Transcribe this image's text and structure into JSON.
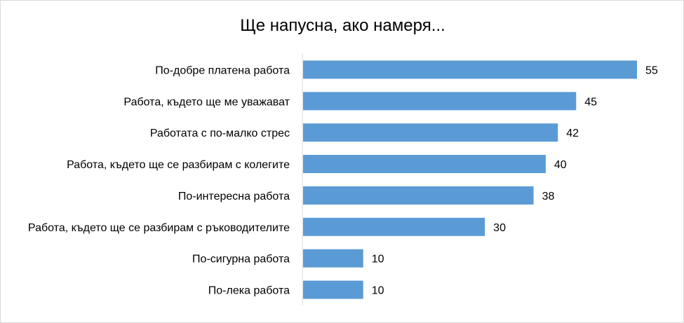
{
  "chart_data": {
    "type": "bar",
    "orientation": "horizontal",
    "title": "Ще напусна, ако намеря...",
    "categories": [
      "По-добре платена работа",
      "Работа, където ще ме уважават",
      "Работата с по-малко стрес",
      "Работа, където ще се разбирам с колегите",
      "По-интересна работа",
      "Работа, където ще се разбирам с ръководителите",
      "По-сигурна работа",
      "По-лека работа"
    ],
    "values": [
      55,
      45,
      42,
      40,
      38,
      30,
      10,
      10
    ],
    "xlim": [
      0,
      55
    ],
    "grid": false,
    "legend": "none",
    "bar_color": "#5b9bd5",
    "axis_color": "#d9d9d9"
  }
}
